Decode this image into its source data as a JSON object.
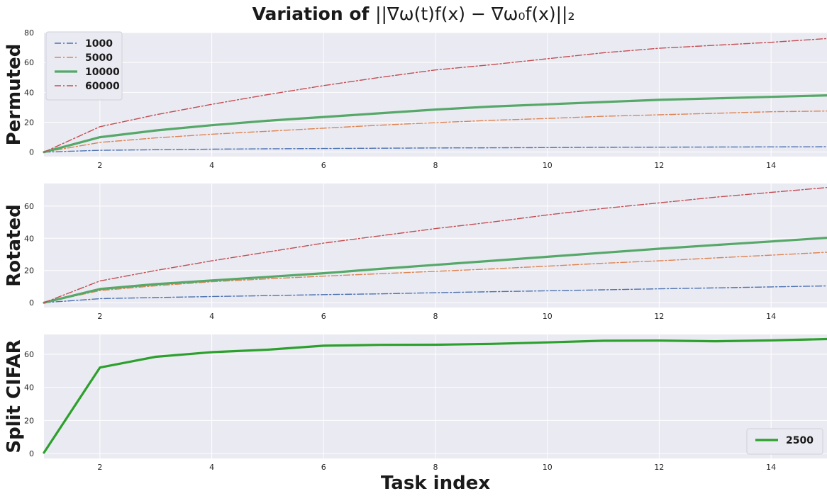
{
  "figure": {
    "title_prefix": "Variation of ",
    "title_math": "||∇ω(t)f(x) − ∇ω₀f(x)||₂",
    "xlabel": "Task index"
  },
  "colors": {
    "background": "#eaeaf2",
    "grid": "#ffffff",
    "blue": "#4c72b0",
    "orange": "#dd8452",
    "green": "#55a868",
    "red": "#c44e52",
    "split_green": "#2ca02c"
  },
  "chart_data": [
    {
      "type": "line",
      "ylabel": "Permuted",
      "xlim": [
        1,
        15
      ],
      "ylim": [
        -3,
        80
      ],
      "xticks": [
        2,
        4,
        6,
        8,
        10,
        12,
        14
      ],
      "yticks": [
        0,
        20,
        40,
        60,
        80
      ],
      "grid": true,
      "legend_position": "top-left",
      "x": [
        1,
        2,
        3,
        4,
        5,
        6,
        7,
        8,
        9,
        10,
        11,
        12,
        13,
        14,
        15
      ],
      "series": [
        {
          "name": "1000",
          "color_key": "blue",
          "style": "dashdot",
          "values": [
            0,
            1.2,
            1.6,
            2.0,
            2.2,
            2.4,
            2.6,
            2.8,
            2.9,
            3.0,
            3.2,
            3.3,
            3.4,
            3.5,
            3.6
          ]
        },
        {
          "name": "5000",
          "color_key": "orange",
          "style": "dashdot",
          "values": [
            0,
            6.5,
            9.5,
            12,
            14,
            16,
            18,
            19.7,
            21.3,
            22.5,
            24,
            25,
            26,
            27,
            27.5
          ]
        },
        {
          "name": "10000",
          "color_key": "green",
          "style": "solid",
          "values": [
            0,
            10,
            14.5,
            18,
            21,
            23.5,
            26,
            28.5,
            30.5,
            32,
            33.5,
            35,
            36,
            37,
            38
          ]
        },
        {
          "name": "60000",
          "color_key": "red",
          "style": "dashdot",
          "values": [
            0,
            17,
            25,
            32,
            38.5,
            44.5,
            50,
            55,
            58.5,
            62.5,
            66.5,
            69.5,
            71.5,
            73.5,
            76
          ]
        }
      ]
    },
    {
      "type": "line",
      "ylabel": "Rotated",
      "xlim": [
        1,
        15
      ],
      "ylim": [
        -3,
        74
      ],
      "xticks": [
        2,
        4,
        6,
        8,
        10,
        12,
        14
      ],
      "yticks": [
        0,
        20,
        40,
        60
      ],
      "grid": true,
      "x": [
        1,
        2,
        3,
        4,
        5,
        6,
        7,
        8,
        9,
        10,
        11,
        12,
        13,
        14,
        15
      ],
      "series": [
        {
          "name": "1000",
          "color_key": "blue",
          "style": "dashdot",
          "values": [
            0,
            2.5,
            3.2,
            3.8,
            4.4,
            5.0,
            5.5,
            6.2,
            6.8,
            7.4,
            8.0,
            8.6,
            9.2,
            9.8,
            10.4
          ]
        },
        {
          "name": "5000",
          "color_key": "orange",
          "style": "dashdot",
          "values": [
            0,
            7.5,
            10.5,
            13,
            14.8,
            16.5,
            18,
            19.5,
            21,
            22.7,
            24.5,
            26,
            27.8,
            29.5,
            31.3
          ]
        },
        {
          "name": "10000",
          "color_key": "green",
          "style": "solid",
          "values": [
            0,
            8.5,
            11.5,
            13.8,
            16,
            18.3,
            21,
            23.5,
            26,
            28.5,
            31,
            33.5,
            35.8,
            38,
            40.3
          ]
        },
        {
          "name": "60000",
          "color_key": "red",
          "style": "dashdot",
          "values": [
            0,
            13.5,
            20,
            26,
            31.5,
            37,
            41.5,
            46,
            50,
            54.5,
            58.5,
            62,
            65.5,
            68.5,
            71.5
          ]
        }
      ]
    },
    {
      "type": "line",
      "ylabel": "Split CIFAR",
      "xlim": [
        1,
        15
      ],
      "ylim": [
        -3,
        72
      ],
      "xticks": [
        2,
        4,
        6,
        8,
        10,
        12,
        14
      ],
      "yticks": [
        0,
        20,
        40,
        60
      ],
      "grid": true,
      "legend_position": "bottom-right",
      "x": [
        1,
        2,
        3,
        4,
        5,
        6,
        7,
        8,
        9,
        10,
        11,
        12,
        13,
        14,
        15
      ],
      "series": [
        {
          "name": "2500",
          "color_key": "split_green",
          "style": "solid",
          "values": [
            0.5,
            52,
            58.5,
            61.3,
            62.8,
            65.2,
            65.7,
            65.8,
            66.3,
            67.2,
            68.2,
            68.3,
            67.9,
            68.4,
            69.2
          ]
        }
      ]
    }
  ]
}
